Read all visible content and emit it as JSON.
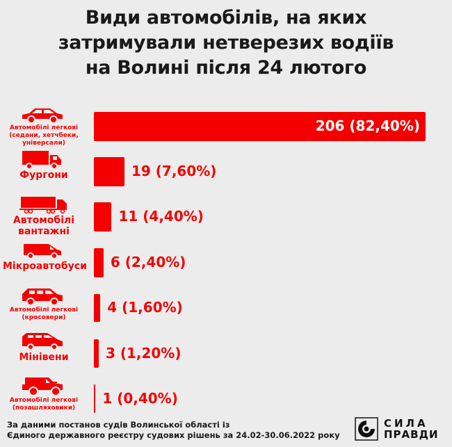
{
  "title_lines": [
    "Види автомобілів, на яких",
    "затримували нетверезих водіїв",
    "на Волині після 24 лютого"
  ],
  "colors": {
    "accent": "#f40000",
    "background": "#ececec",
    "text": "#1a1a1a"
  },
  "chart_data": {
    "type": "bar",
    "orientation": "horizontal",
    "title": "Види автомобілів, на яких затримували нетверезих водіїв на Волині після 24 лютого",
    "categories": [
      {
        "lines": [
          "Автомобілі легкові",
          "(седани, хетчбеки,",
          "універсали)"
        ],
        "icon": "sedan-icon"
      },
      {
        "lines": [
          "Фургони"
        ],
        "icon": "box-truck-icon"
      },
      {
        "lines": [
          "Автомобілі",
          "вантажні"
        ],
        "icon": "semi-truck-icon"
      },
      {
        "lines": [
          "Мікроавтобуси"
        ],
        "icon": "minibus-icon"
      },
      {
        "lines": [
          "Автомобілі легкові",
          "(кросовери)"
        ],
        "icon": "crossover-icon"
      },
      {
        "lines": [
          "Мінівени"
        ],
        "icon": "minivan-icon"
      },
      {
        "lines": [
          "Автомобілі легкові",
          "(позашляховики)"
        ],
        "icon": "suv-icon"
      }
    ],
    "values": [
      206,
      19,
      11,
      6,
      4,
      3,
      1
    ],
    "value_labels": [
      "206 (82,40%)",
      "19 (7,60%)",
      "11 (4,40%)",
      "6 (2,40%)",
      "4 (1,60%)",
      "3 (1,20%)",
      "1 (0,40%)"
    ],
    "percentages": [
      82.4,
      7.6,
      4.4,
      2.4,
      1.6,
      1.2,
      0.4
    ],
    "grid": false
  },
  "source": [
    "За даними постанов судів Волинської області із",
    "Єдиного державного реєстру судових рішень за 24.02-30.06.2022 року"
  ],
  "logo": {
    "line1": "СИЛА",
    "line2": "ПРАВДИ"
  }
}
